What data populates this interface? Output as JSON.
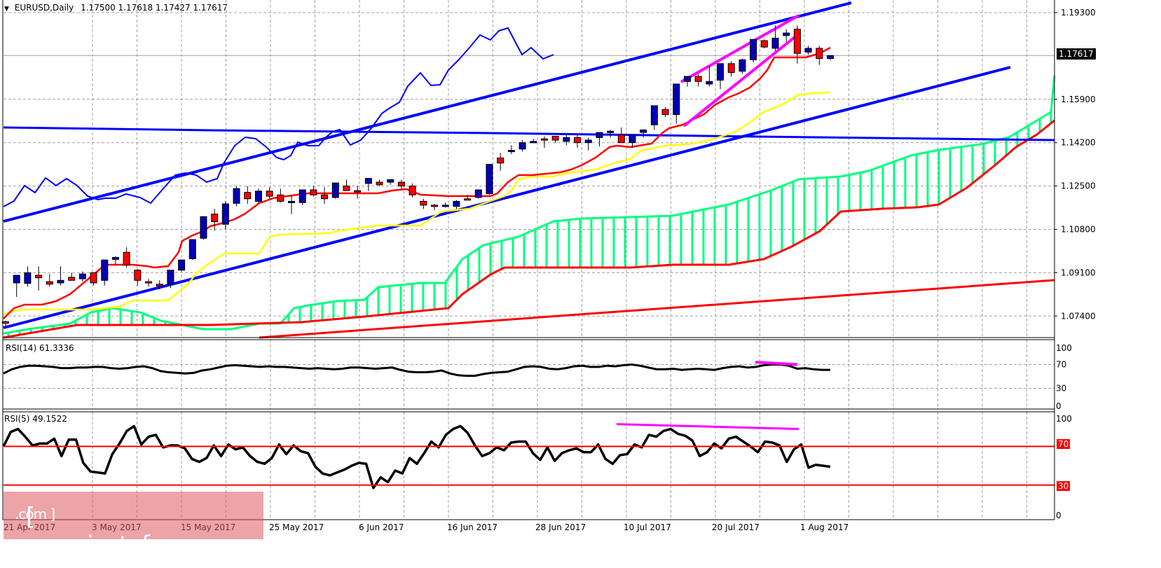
{
  "header": {
    "symbol": "EURUSD,Daily",
    "ohlc": "1.17500 1.17618 1.17427 1.17617"
  },
  "current_price_label": "1.17617",
  "panels": {
    "rsi14": {
      "label": "RSI(14) 61.3336",
      "ticks": [
        "100",
        "70",
        "30",
        "0"
      ]
    },
    "rsi5": {
      "label": "RSI(5) 49.1522",
      "ticks": [
        "100",
        "70",
        "30",
        "0"
      ],
      "level_70": "70",
      "level_30": "30"
    }
  },
  "watermark": {
    "text": "[ www.instaforex",
    "suffix": ".com ]"
  },
  "colors": {
    "bull_candle": "#0000b4",
    "bear_candle": "#ff0000",
    "tenkan": "#ff0000",
    "kijun": "#ffff00",
    "chikou": "#0000ff",
    "kumo": "#00ff80",
    "trendline": "#0000ff",
    "wedge": "#ff00ff",
    "grid": "#a0a0a0"
  },
  "chart_data": {
    "type": "candlestick",
    "title": "EURUSD,Daily",
    "price_axis": [
      "1.19300",
      "1.17617",
      "1.15900",
      "1.14200",
      "1.12500",
      "1.10800",
      "1.09100",
      "1.07400"
    ],
    "x_ticks": [
      "21 Apr 2017",
      "3 May 2017",
      "15 May 2017",
      "25 May 2017",
      "6 Jun 2017",
      "16 Jun 2017",
      "28 Jun 2017",
      "10 Jul 2017",
      "20 Jul 2017",
      "1 Aug 2017"
    ],
    "ylim": [
      1.069,
      1.198
    ],
    "last_ohlc": {
      "open": 1.175,
      "high": 1.17618,
      "low": 1.17427,
      "close": 1.17617
    },
    "candles": [
      [
        1.0718,
        1.0722,
        1.07,
        1.0712
      ],
      [
        1.087,
        1.0875,
        1.0815,
        1.09
      ],
      [
        1.0868,
        1.0935,
        1.0855,
        1.091
      ],
      [
        1.09,
        1.0935,
        1.084,
        1.089
      ],
      [
        1.0875,
        1.0905,
        1.0855,
        1.0865
      ],
      [
        1.087,
        1.0935,
        1.086,
        1.088
      ],
      [
        1.0892,
        1.091,
        1.0885,
        1.088
      ],
      [
        1.0886,
        1.0915,
        1.0875,
        1.0905
      ],
      [
        1.091,
        1.091,
        1.086,
        1.087
      ],
      [
        1.088,
        1.096,
        1.086,
        1.096
      ],
      [
        1.0962,
        1.0975,
        1.094,
        1.097
      ],
      [
        1.099,
        1.101,
        1.093,
        1.094
      ],
      [
        1.092,
        1.0925,
        1.086,
        1.088
      ],
      [
        1.0875,
        1.0885,
        1.0855,
        1.087
      ],
      [
        1.0865,
        1.088,
        1.0845,
        1.0858
      ],
      [
        1.0865,
        1.092,
        1.085,
        1.092
      ],
      [
        1.092,
        1.096,
        1.0915,
        1.096
      ],
      [
        1.0965,
        1.104,
        1.096,
        1.104
      ],
      [
        1.1045,
        1.113,
        1.104,
        1.113
      ],
      [
        1.114,
        1.116,
        1.1075,
        1.111
      ],
      [
        1.11,
        1.119,
        1.108,
        1.118
      ],
      [
        1.1182,
        1.125,
        1.117,
        1.124
      ],
      [
        1.1225,
        1.125,
        1.118,
        1.12
      ],
      [
        1.119,
        1.124,
        1.118,
        1.123
      ],
      [
        1.123,
        1.1245,
        1.12,
        1.121
      ],
      [
        1.1215,
        1.124,
        1.1185,
        1.119
      ],
      [
        1.1185,
        1.1215,
        1.114,
        1.119
      ],
      [
        1.1185,
        1.1235,
        1.1175,
        1.1235
      ],
      [
        1.1235,
        1.125,
        1.121,
        1.1215
      ],
      [
        1.1215,
        1.1245,
        1.118,
        1.12
      ],
      [
        1.1205,
        1.1262,
        1.12,
        1.1262
      ],
      [
        1.125,
        1.1275,
        1.124,
        1.1232
      ],
      [
        1.1232,
        1.125,
        1.12,
        1.123
      ],
      [
        1.126,
        1.1275,
        1.123,
        1.128
      ],
      [
        1.1265,
        1.1275,
        1.125,
        1.1255
      ],
      [
        1.1265,
        1.1275,
        1.1255,
        1.1275
      ],
      [
        1.1265,
        1.1275,
        1.1235,
        1.125
      ],
      [
        1.125,
        1.126,
        1.1205,
        1.1215
      ],
      [
        1.119,
        1.12,
        1.116,
        1.1175
      ],
      [
        1.1175,
        1.118,
        1.1155,
        1.117
      ],
      [
        1.117,
        1.1185,
        1.1165,
        1.1175
      ],
      [
        1.117,
        1.1195,
        1.116,
        1.119
      ],
      [
        1.12,
        1.1215,
        1.1195,
        1.1195
      ],
      [
        1.1205,
        1.1235,
        1.12,
        1.1235
      ],
      [
        1.122,
        1.1335,
        1.1215,
        1.1335
      ],
      [
        1.136,
        1.138,
        1.131,
        1.134
      ],
      [
        1.1385,
        1.141,
        1.1375,
        1.139
      ],
      [
        1.1395,
        1.143,
        1.1385,
        1.142
      ],
      [
        1.142,
        1.1435,
        1.142,
        1.1425
      ],
      [
        1.1435,
        1.1445,
        1.14,
        1.143
      ],
      [
        1.1445,
        1.1445,
        1.142,
        1.143
      ],
      [
        1.1425,
        1.145,
        1.141,
        1.144
      ],
      [
        1.144,
        1.145,
        1.14,
        1.142
      ],
      [
        1.142,
        1.144,
        1.139,
        1.143
      ],
      [
        1.144,
        1.146,
        1.1405,
        1.146
      ],
      [
        1.146,
        1.147,
        1.144,
        1.1465
      ],
      [
        1.145,
        1.148,
        1.142,
        1.142
      ],
      [
        1.142,
        1.145,
        1.14,
        1.145
      ],
      [
        1.146,
        1.147,
        1.144,
        1.147
      ],
      [
        1.149,
        1.1565,
        1.147,
        1.1565
      ],
      [
        1.155,
        1.156,
        1.152,
        1.153
      ],
      [
        1.153,
        1.165,
        1.1495,
        1.165
      ],
      [
        1.166,
        1.1665,
        1.164,
        1.168
      ],
      [
        1.168,
        1.169,
        1.164,
        1.166
      ],
      [
        1.165,
        1.172,
        1.164,
        1.166
      ],
      [
        1.1665,
        1.173,
        1.163,
        1.173
      ],
      [
        1.173,
        1.174,
        1.168,
        1.1695
      ],
      [
        1.17,
        1.175,
        1.169,
        1.1745
      ],
      [
        1.1745,
        1.1825,
        1.1735,
        1.1825
      ],
      [
        1.182,
        1.1825,
        1.179,
        1.1795
      ],
      [
        1.179,
        1.188,
        1.178,
        1.183
      ],
      [
        1.184,
        1.1865,
        1.1815,
        1.185
      ],
      [
        1.1865,
        1.188,
        1.173,
        1.177
      ],
      [
        1.1775,
        1.18,
        1.1765,
        1.179
      ],
      [
        1.179,
        1.18,
        1.1725,
        1.175
      ],
      [
        1.175,
        1.17618,
        1.17427,
        1.17617
      ]
    ],
    "rsi14_last": 61.3336,
    "rsi5_last": 49.1522
  }
}
